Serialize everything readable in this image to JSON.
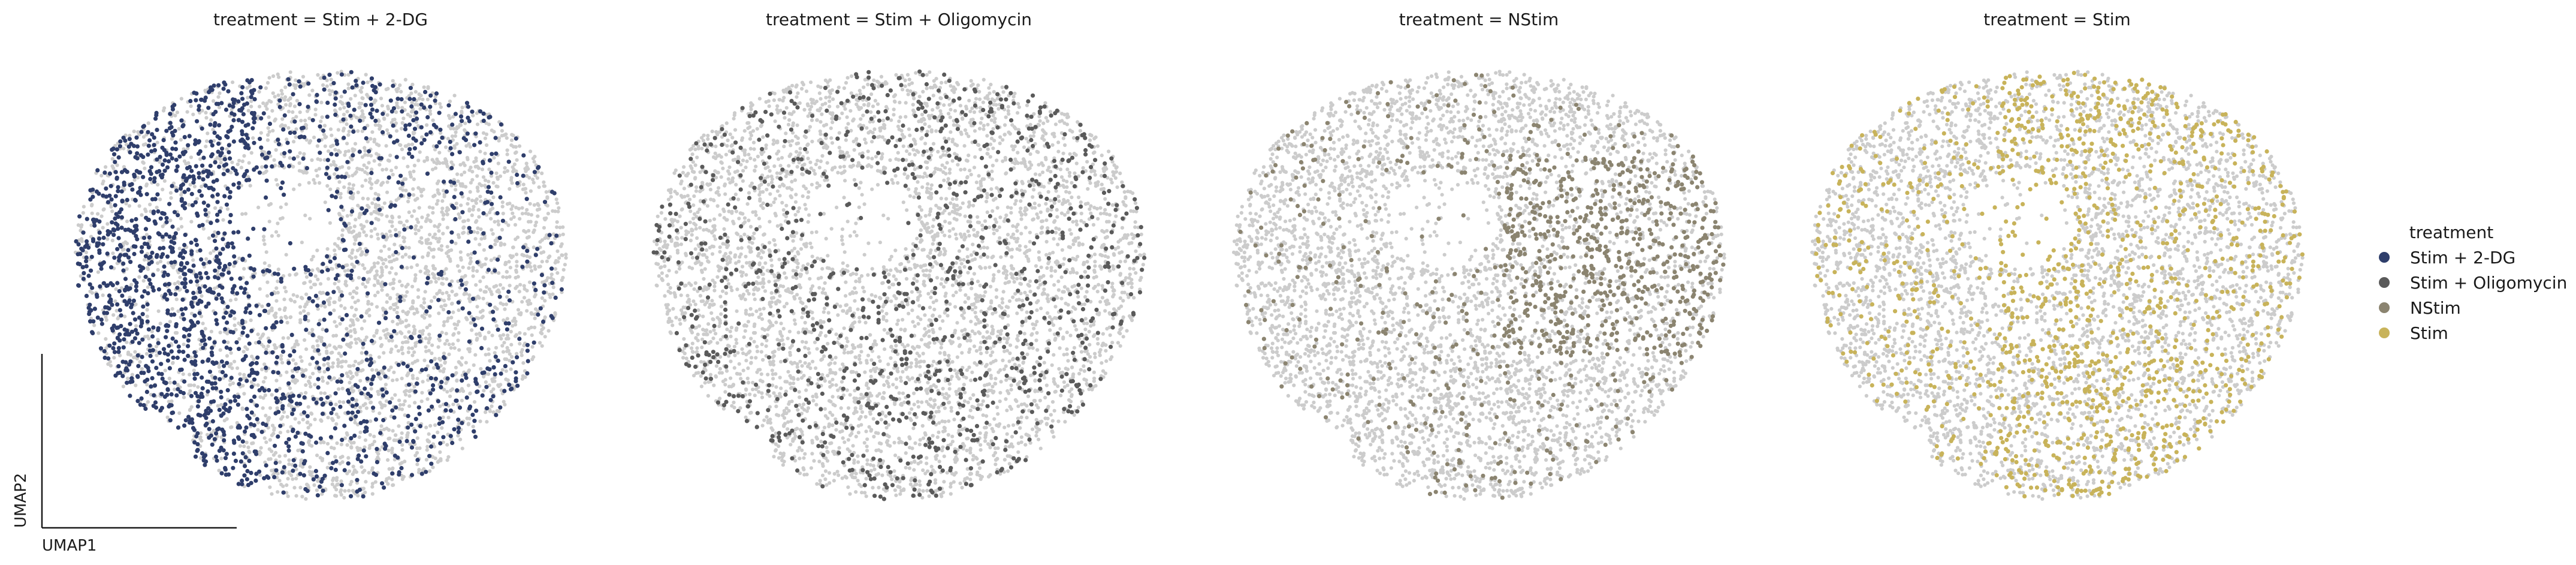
{
  "chart_data": {
    "type": "scatter",
    "embedding": "UMAP",
    "xlabel": "UMAP1",
    "ylabel": "UMAP2",
    "color_by": "treatment",
    "background_color": "#cccccc",
    "panels": [
      {
        "title": "treatment = Stim + 2-DG",
        "highlight": "Stim + 2-DG"
      },
      {
        "title": "treatment = Stim + Oligomycin",
        "highlight": "Stim + Oligomycin"
      },
      {
        "title": "treatment = NStim",
        "highlight": "NStim"
      },
      {
        "title": "treatment = Stim",
        "highlight": "Stim"
      }
    ],
    "legend": {
      "title": "treatment",
      "placement": "right",
      "items": [
        {
          "label": "Stim + 2-DG",
          "color": "#2f3e6b"
        },
        {
          "label": "Stim + Oligomycin",
          "color": "#5a5a5a"
        },
        {
          "label": "NStim",
          "color": "#8b8470"
        },
        {
          "label": "Stim",
          "color": "#c8b35a"
        }
      ]
    },
    "grid": false
  }
}
